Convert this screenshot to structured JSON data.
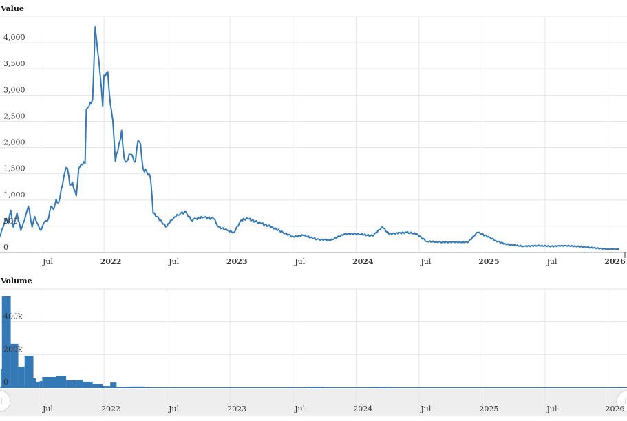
{
  "chart_data": [
    {
      "type": "line",
      "title": "Value",
      "color": "#3478b5",
      "ylim": [
        0,
        4500
      ],
      "yticks": [
        0,
        500,
        1000,
        1500,
        2000,
        2500,
        3000,
        3500,
        4000
      ],
      "ytick_labels": [
        "0",
        "500",
        "1,000",
        "1,500",
        "2,000",
        "2,500",
        "3,000",
        "3,500",
        "4,000"
      ],
      "x_unit": "decimal-year",
      "xlim": [
        2021.175,
        2026.15
      ],
      "xticks": [
        {
          "x": 2021.5,
          "label": "Jul",
          "bold": false
        },
        {
          "x": 2022.0,
          "label": "2022",
          "bold": true
        },
        {
          "x": 2022.5,
          "label": "Jul",
          "bold": false
        },
        {
          "x": 2023.0,
          "label": "2023",
          "bold": true
        },
        {
          "x": 2023.5,
          "label": "Jul",
          "bold": false
        },
        {
          "x": 2024.0,
          "label": "2024",
          "bold": true
        },
        {
          "x": 2024.5,
          "label": "Jul",
          "bold": false
        },
        {
          "x": 2025.0,
          "label": "2025",
          "bold": true
        },
        {
          "x": 2025.5,
          "label": "Jul",
          "bold": false
        },
        {
          "x": 2026.0,
          "label": "2026",
          "bold": true
        }
      ],
      "grid": true,
      "points": [
        [
          2021.17,
          290
        ],
        [
          2021.2,
          487
        ],
        [
          2021.22,
          645
        ],
        [
          2021.24,
          553
        ],
        [
          2021.26,
          803
        ],
        [
          2021.28,
          487
        ],
        [
          2021.31,
          750
        ],
        [
          2021.34,
          421
        ],
        [
          2021.37,
          618
        ],
        [
          2021.4,
          882
        ],
        [
          2021.43,
          487
        ],
        [
          2021.45,
          684
        ],
        [
          2021.48,
          513
        ],
        [
          2021.5,
          421
        ],
        [
          2021.52,
          553
        ],
        [
          2021.56,
          645
        ],
        [
          2021.58,
          882
        ],
        [
          2021.6,
          816
        ],
        [
          2021.62,
          1013
        ],
        [
          2021.64,
          947
        ],
        [
          2021.67,
          1276
        ],
        [
          2021.69,
          1540
        ],
        [
          2021.71,
          1605
        ],
        [
          2021.73,
          1276
        ],
        [
          2021.75,
          1342
        ],
        [
          2021.78,
          1079
        ],
        [
          2021.8,
          1605
        ],
        [
          2021.83,
          1671
        ],
        [
          2021.85,
          1698
        ],
        [
          2021.86,
          2724
        ],
        [
          2021.89,
          2856
        ],
        [
          2021.91,
          2922
        ],
        [
          2021.93,
          4303
        ],
        [
          2021.95,
          3843
        ],
        [
          2021.97,
          3382
        ],
        [
          2021.99,
          2790
        ],
        [
          2022.0,
          3382
        ],
        [
          2022.03,
          3448
        ],
        [
          2022.05,
          2856
        ],
        [
          2022.07,
          2527
        ],
        [
          2022.09,
          1737
        ],
        [
          2022.11,
          1934
        ],
        [
          2022.14,
          2329
        ],
        [
          2022.16,
          1803
        ],
        [
          2022.18,
          1737
        ],
        [
          2022.21,
          1869
        ],
        [
          2022.25,
          1737
        ],
        [
          2022.27,
          2132
        ],
        [
          2022.29,
          2066
        ],
        [
          2022.31,
          1605
        ],
        [
          2022.34,
          1540
        ],
        [
          2022.37,
          1408
        ],
        [
          2022.39,
          750
        ],
        [
          2022.42,
          684
        ],
        [
          2022.45,
          618
        ],
        [
          2022.49,
          487
        ],
        [
          2022.51,
          553
        ],
        [
          2022.54,
          618
        ],
        [
          2022.57,
          684
        ],
        [
          2022.61,
          750
        ],
        [
          2022.65,
          776
        ],
        [
          2022.69,
          618
        ],
        [
          2022.73,
          645
        ],
        [
          2022.79,
          671
        ],
        [
          2022.87,
          645
        ],
        [
          2022.91,
          487
        ],
        [
          2022.98,
          421
        ],
        [
          2023.03,
          382
        ],
        [
          2023.09,
          618
        ],
        [
          2023.14,
          645
        ],
        [
          2023.2,
          592
        ],
        [
          2023.25,
          553
        ],
        [
          2023.33,
          487
        ],
        [
          2023.42,
          382
        ],
        [
          2023.5,
          303
        ],
        [
          2023.58,
          329
        ],
        [
          2023.69,
          250
        ],
        [
          2023.8,
          237
        ],
        [
          2023.91,
          355
        ],
        [
          2024.02,
          355
        ],
        [
          2024.13,
          316
        ],
        [
          2024.21,
          487
        ],
        [
          2024.26,
          355
        ],
        [
          2024.4,
          382
        ],
        [
          2024.48,
          355
        ],
        [
          2024.56,
          211
        ],
        [
          2024.67,
          197
        ],
        [
          2024.78,
          197
        ],
        [
          2024.89,
          197
        ],
        [
          2024.95,
          355
        ],
        [
          2024.97,
          382
        ],
        [
          2025.06,
          290
        ],
        [
          2025.11,
          224
        ],
        [
          2025.19,
          158
        ],
        [
          2025.33,
          118
        ],
        [
          2025.44,
          132
        ],
        [
          2025.55,
          118
        ],
        [
          2025.66,
          132
        ],
        [
          2025.82,
          105
        ],
        [
          2025.98,
          66
        ],
        [
          2026.09,
          66
        ]
      ]
    },
    {
      "type": "bar",
      "title": "Volume",
      "color": "#3478b5",
      "ylim": [
        0,
        600000
      ],
      "yticks": [
        0,
        200000,
        400000
      ],
      "ytick_labels": [
        "0",
        "200k",
        "400k"
      ],
      "x_unit": "decimal-year",
      "bars": [
        [
          2021.18,
          2021.19,
          110000
        ],
        [
          2021.19,
          2021.26,
          554000
        ],
        [
          2021.26,
          2021.32,
          265000
        ],
        [
          2021.32,
          2021.37,
          126000
        ],
        [
          2021.37,
          2021.44,
          193000
        ],
        [
          2021.44,
          2021.46,
          55000
        ],
        [
          2021.46,
          2021.49,
          34000
        ],
        [
          2021.49,
          2021.51,
          38000
        ],
        [
          2021.51,
          2021.62,
          63000
        ],
        [
          2021.62,
          2021.7,
          71000
        ],
        [
          2021.7,
          2021.78,
          42000
        ],
        [
          2021.78,
          2021.83,
          46000
        ],
        [
          2021.83,
          2021.91,
          34000
        ],
        [
          2021.91,
          2021.99,
          21000
        ],
        [
          2021.99,
          2022.05,
          8000
        ],
        [
          2022.05,
          2022.1,
          29000
        ],
        [
          2022.1,
          2022.21,
          4000
        ],
        [
          2022.21,
          2022.32,
          5000
        ],
        [
          2022.32,
          2023.65,
          1500
        ],
        [
          2023.65,
          2023.72,
          4000
        ],
        [
          2023.72,
          2024.18,
          1500
        ],
        [
          2024.18,
          2024.25,
          4000
        ],
        [
          2024.25,
          2026.1,
          1500
        ]
      ]
    }
  ]
}
